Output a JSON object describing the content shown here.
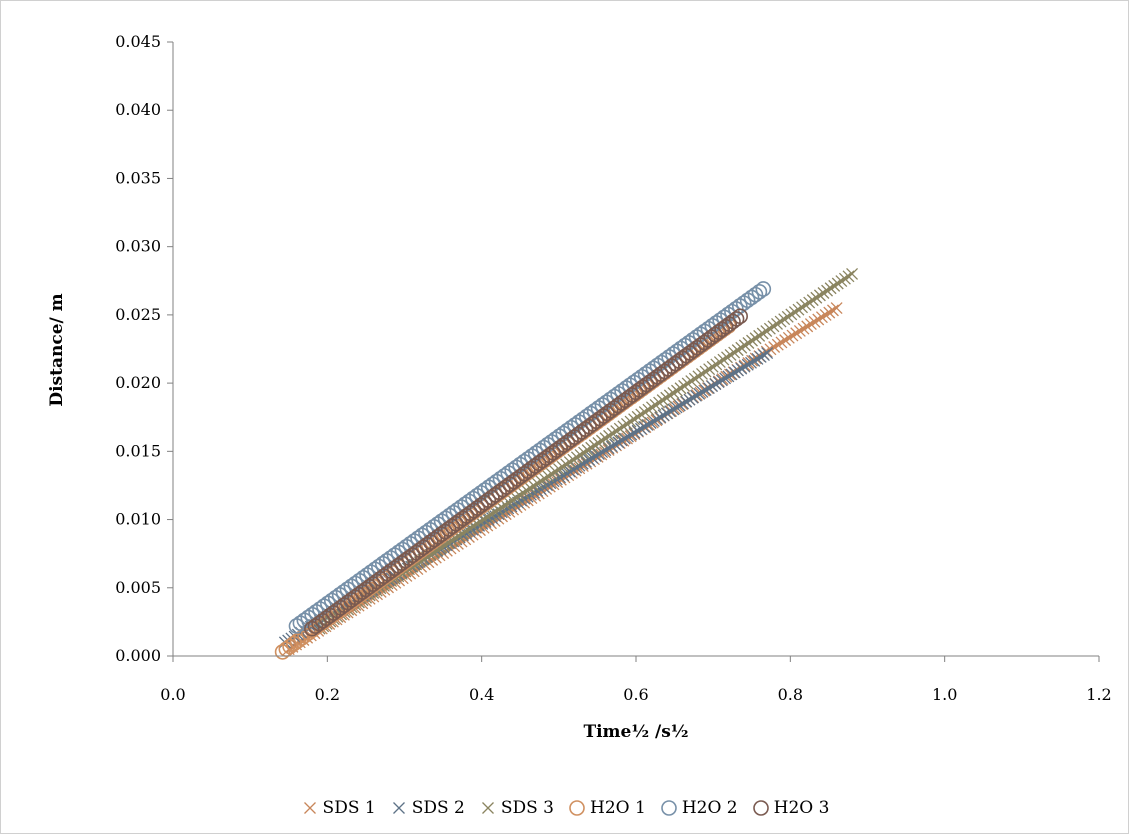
{
  "chart_data": {
    "type": "scatter",
    "title": "",
    "xlabel": "Time½ /s½",
    "ylabel": "Distance/ m",
    "xlim": [
      0.0,
      1.2
    ],
    "ylim": [
      0.0,
      0.045
    ],
    "x_ticks": [
      "0.0",
      "0.2",
      "0.4",
      "0.6",
      "0.8",
      "1.0",
      "1.2"
    ],
    "y_ticks": [
      "0.000",
      "0.005",
      "0.010",
      "0.015",
      "0.020",
      "0.025",
      "0.030",
      "0.035",
      "0.040",
      "0.045"
    ],
    "grid": false,
    "legend_position": "bottom",
    "series": [
      {
        "name": "SDS 1",
        "marker": "x",
        "color": "#c8865a",
        "x_start": 0.15,
        "x_end": 0.86,
        "y_start": 0.0005,
        "y_end": 0.0255
      },
      {
        "name": "SDS 2",
        "marker": "x",
        "color": "#5e7287",
        "x_start": 0.145,
        "x_end": 0.77,
        "y_start": 0.001,
        "y_end": 0.0222
      },
      {
        "name": "SDS 3",
        "marker": "x",
        "color": "#8a8460",
        "x_start": 0.19,
        "x_end": 0.88,
        "y_start": 0.002,
        "y_end": 0.028
      },
      {
        "name": "H2O 1",
        "marker": "o",
        "color": "#d09060",
        "x_start": 0.142,
        "x_end": 0.72,
        "y_start": 0.0003,
        "y_end": 0.0242
      },
      {
        "name": "H2O 2",
        "marker": "o",
        "color": "#7790a8",
        "x_start": 0.16,
        "x_end": 0.765,
        "y_start": 0.0022,
        "y_end": 0.0269
      },
      {
        "name": "H2O 3",
        "marker": "o",
        "color": "#7a5a50",
        "x_start": 0.18,
        "x_end": 0.735,
        "y_start": 0.002,
        "y_end": 0.0249
      }
    ]
  }
}
